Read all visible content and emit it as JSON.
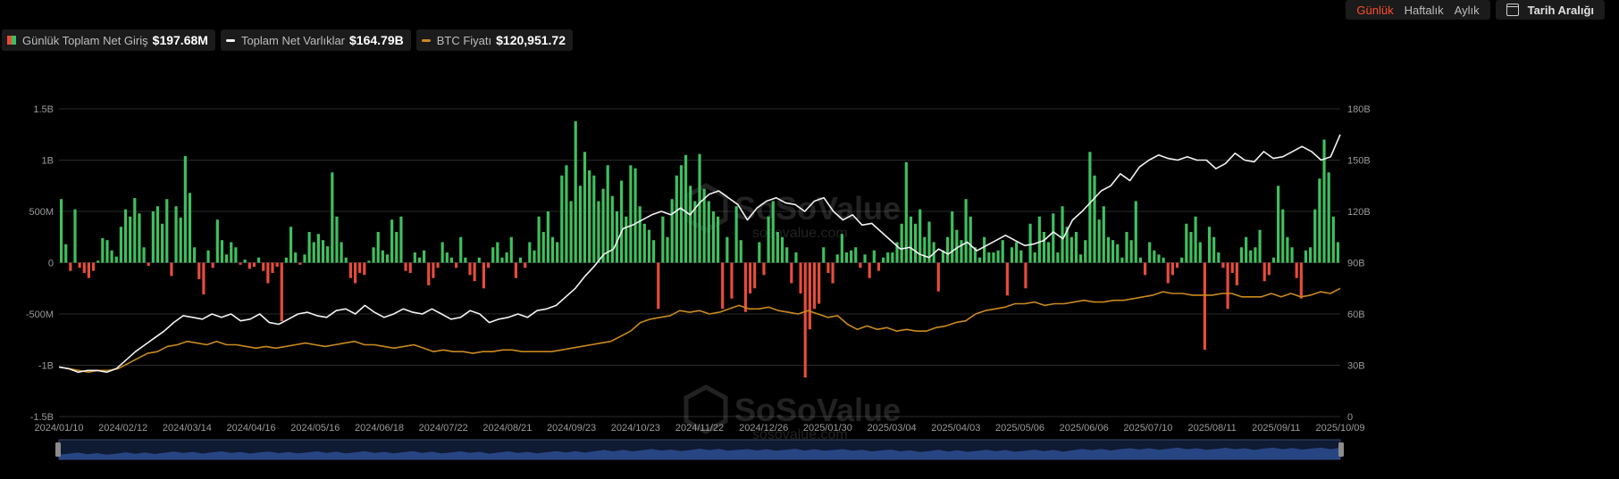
{
  "legend": {
    "inflow_label": "Günlük Toplam Net Giriş",
    "inflow_value": "$197.68M",
    "assets_label": "Toplam Net Varlıklar",
    "assets_value": "$164.79B",
    "btc_label": "BTC Fiyatı",
    "btc_value": "$120,951.72"
  },
  "toolbar": {
    "daily": "Günlük",
    "weekly": "Haftalık",
    "monthly": "Aylık",
    "date_range": "Tarih Aralığı"
  },
  "watermark": {
    "brand": "SoSoValue",
    "url": "sosovalue.com"
  },
  "colors": {
    "positive": "#3fbf5f",
    "negative": "#e74c3c",
    "assets_line": "#f2f2f2",
    "btc_line": "#c98a1e",
    "active_tab": "#ff4d2e",
    "navigator": "#2b4a8c"
  },
  "chart_data": {
    "type": "bar",
    "x_ticks": [
      "2024/01/10",
      "2024/02/12",
      "2024/03/14",
      "2024/04/16",
      "2024/05/16",
      "2024/06/18",
      "2024/07/22",
      "2024/08/21",
      "2024/09/23",
      "2024/10/23",
      "2024/11/22",
      "2024/12/26",
      "2025/01/30",
      "2025/03/04",
      "2025/04/03",
      "2025/05/06",
      "2025/06/06",
      "2025/07/10",
      "2025/08/11",
      "2025/09/11",
      "2025/10/09"
    ],
    "y_left_ticks": [
      "1.5B",
      "1B",
      "500M",
      "0",
      "-500M",
      "-1B",
      "-1.5B"
    ],
    "y_right_ticks": [
      "180B",
      "150B",
      "120B",
      "90B",
      "60B",
      "30B",
      "0"
    ],
    "ylim_left": [
      -1.5,
      1.5
    ],
    "ylim_right": [
      0,
      180
    ],
    "grid": true,
    "legend_position": "top-left",
    "series": [
      {
        "name": "Günlük Toplam Net Giriş",
        "type": "bar",
        "unit": "B USD",
        "values": [
          0.62,
          0.18,
          -0.08,
          0.52,
          -0.05,
          -0.1,
          -0.15,
          -0.08,
          0.02,
          0.24,
          0.22,
          0.12,
          0.06,
          0.35,
          0.52,
          0.45,
          0.63,
          0.48,
          0.15,
          -0.03,
          0.5,
          0.55,
          0.38,
          0.62,
          -0.13,
          0.55,
          0.44,
          1.04,
          0.68,
          0.15,
          -0.16,
          -0.31,
          0.12,
          -0.05,
          0.42,
          0.22,
          0.08,
          0.2,
          0.15,
          -0.02,
          0.03,
          -0.06,
          -0.04,
          0.05,
          -0.08,
          -0.2,
          -0.1,
          -0.04,
          -0.57,
          0.05,
          0.35,
          0.1,
          -0.02,
          0.08,
          0.3,
          0.2,
          0.28,
          0.22,
          0.16,
          0.88,
          0.45,
          0.2,
          0.05,
          -0.15,
          -0.2,
          -0.1,
          -0.12,
          0.02,
          0.15,
          0.3,
          0.12,
          0.08,
          0.42,
          0.3,
          0.45,
          -0.08,
          -0.1,
          0.1,
          0.05,
          0.12,
          -0.22,
          -0.15,
          -0.05,
          0.2,
          0.1,
          0.05,
          -0.05,
          0.25,
          0.05,
          -0.12,
          -0.18,
          0.05,
          -0.25,
          -0.05,
          0.15,
          0.2,
          0.05,
          0.1,
          0.25,
          -0.15,
          0.05,
          -0.05,
          0.2,
          0.12,
          0.45,
          0.3,
          0.5,
          0.25,
          0.2,
          0.85,
          0.95,
          0.6,
          1.38,
          0.75,
          1.08,
          0.9,
          0.85,
          0.6,
          0.72,
          0.95,
          0.65,
          0.5,
          0.8,
          0.45,
          0.95,
          0.92,
          0.55,
          0.38,
          0.32,
          0.22,
          -0.45,
          0.45,
          0.25,
          0.62,
          0.85,
          0.95,
          1.05,
          0.75,
          0.6,
          1.06,
          0.72,
          0.6,
          0.5,
          0.45,
          -0.45,
          0.25,
          -0.35,
          0.55,
          0.22,
          -0.48,
          -0.3,
          -0.25,
          0.2,
          -0.12,
          0.45,
          0.6,
          0.3,
          0.25,
          0.15,
          -0.2,
          0.1,
          -0.3,
          -1.12,
          -0.65,
          -0.45,
          -0.4,
          0.15,
          -0.1,
          -0.2,
          0.08,
          0.28,
          0.1,
          0.12,
          0.15,
          -0.05,
          0.08,
          -0.15,
          0.12,
          -0.08,
          0.05,
          0.1,
          0.1,
          0.2,
          0.38,
          0.98,
          0.45,
          0.38,
          0.52,
          0.25,
          0.4,
          0.2,
          -0.28,
          0.12,
          0.25,
          0.5,
          0.32,
          0.22,
          0.62,
          0.45,
          0.15,
          0.05,
          0.25,
          0.1,
          0.1,
          0.12,
          0.22,
          -0.32,
          0.15,
          0.2,
          0.12,
          -0.25,
          0.38,
          0.1,
          0.45,
          0.3,
          0.2,
          0.48,
          0.1,
          0.55,
          0.35,
          0.25,
          0.3,
          0.08,
          0.22,
          1.08,
          0.85,
          0.42,
          0.55,
          0.25,
          0.22,
          0.18,
          0.05,
          0.3,
          0.22,
          0.6,
          0.05,
          -0.12,
          0.2,
          0.12,
          0.08,
          0.05,
          -0.2,
          -0.12,
          -0.05,
          0.05,
          0.38,
          0.3,
          0.45,
          0.2,
          -0.85,
          0.35,
          0.25,
          0.1,
          -0.05,
          -0.45,
          -0.1,
          -0.22,
          0.15,
          0.25,
          0.12,
          0.15,
          0.32,
          -0.18,
          -0.12,
          0.05,
          0.75,
          0.52,
          0.25,
          0.15,
          -0.15,
          -0.35,
          0.12,
          0.15,
          0.52,
          0.82,
          1.2,
          0.88,
          0.45,
          0.2
        ],
        "color": "#3fbf5f"
      },
      {
        "name": "Toplam Net Varlıklar",
        "type": "line",
        "axis": "right",
        "unit": "B USD",
        "values": [
          29,
          28,
          26,
          27,
          27,
          26,
          28,
          33,
          38,
          42,
          46,
          50,
          55,
          59,
          58,
          57,
          60,
          58,
          60,
          56,
          57,
          60,
          55,
          54,
          57,
          60,
          61,
          59,
          58,
          62,
          63,
          60,
          65,
          61,
          58,
          60,
          63,
          61,
          60,
          63,
          60,
          57,
          58,
          62,
          60,
          55,
          57,
          58,
          60,
          58,
          62,
          63,
          65,
          70,
          75,
          82,
          88,
          95,
          98,
          110,
          112,
          115,
          118,
          120,
          118,
          122,
          118,
          125,
          130,
          132,
          128,
          124,
          115,
          122,
          126,
          128,
          125,
          124,
          120,
          126,
          128,
          120,
          115,
          118,
          112,
          113,
          108,
          103,
          98,
          99,
          95,
          93,
          98,
          95,
          99,
          102,
          97,
          100,
          103,
          106,
          103,
          100,
          101,
          103,
          108,
          104,
          115,
          120,
          126,
          132,
          135,
          142,
          138,
          146,
          150,
          153,
          151,
          150,
          152,
          150,
          150,
          145,
          148,
          154,
          150,
          149,
          155,
          151,
          152,
          155,
          158,
          155,
          150,
          152,
          165
        ],
        "color": "#f2f2f2"
      },
      {
        "name": "BTC Fiyatı",
        "type": "line",
        "axis": "right",
        "unit": "price (scaled)",
        "values": [
          29,
          28,
          27,
          26,
          27,
          27,
          28,
          31,
          34,
          37,
          38,
          41,
          42,
          44,
          43,
          42,
          44,
          42,
          42,
          41,
          40,
          41,
          40,
          41,
          42,
          43,
          42,
          41,
          42,
          43,
          44,
          42,
          42,
          41,
          40,
          41,
          42,
          40,
          38,
          39,
          38,
          38,
          37,
          38,
          38,
          39,
          39,
          38,
          38,
          38,
          38,
          39,
          40,
          41,
          42,
          43,
          44,
          47,
          50,
          55,
          57,
          58,
          59,
          62,
          61,
          62,
          60,
          61,
          63,
          65,
          63,
          63,
          64,
          62,
          61,
          60,
          62,
          60,
          58,
          59,
          54,
          51,
          53,
          51,
          52,
          50,
          51,
          50,
          50,
          52,
          53,
          55,
          56,
          60,
          62,
          63,
          64,
          66,
          66,
          67,
          65,
          66,
          66,
          67,
          68,
          67,
          67,
          68,
          68,
          69,
          70,
          71,
          73,
          72,
          72,
          71,
          71,
          71,
          72,
          72,
          70,
          70,
          70,
          72,
          70,
          72,
          70,
          71,
          73,
          72,
          75
        ],
        "color": "#c98a1e"
      }
    ]
  }
}
